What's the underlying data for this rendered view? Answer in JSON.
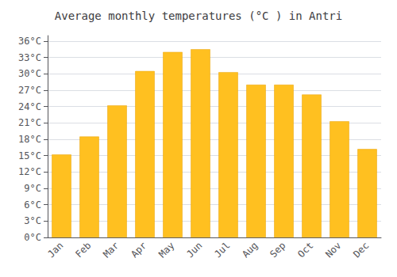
{
  "chart_data": {
    "type": "bar",
    "title": "Average monthly temperatures (°C ) in Antri",
    "categories": [
      "Jan",
      "Feb",
      "Mar",
      "Apr",
      "May",
      "Jun",
      "Jul",
      "Aug",
      "Sep",
      "Oct",
      "Nov",
      "Dec"
    ],
    "values": [
      15.2,
      18.5,
      24.2,
      30.5,
      34.0,
      34.5,
      30.3,
      28.0,
      28.0,
      26.2,
      21.3,
      16.2
    ],
    "color": "#FFC020",
    "ylim": [
      0,
      37
    ],
    "yticks": [
      {
        "value": 0,
        "label": "0°C"
      },
      {
        "value": 3,
        "label": "3°C"
      },
      {
        "value": 6,
        "label": "6°C"
      },
      {
        "value": 9,
        "label": "9°C"
      },
      {
        "value": 12,
        "label": "12°C"
      },
      {
        "value": 15,
        "label": "15°C"
      },
      {
        "value": 18,
        "label": "18°C"
      },
      {
        "value": 21,
        "label": "21°C"
      },
      {
        "value": 24,
        "label": "24°C"
      },
      {
        "value": 27,
        "label": "27°C"
      },
      {
        "value": 30,
        "label": "30°C"
      },
      {
        "value": 33,
        "label": "33°C"
      },
      {
        "value": 36,
        "label": "36°C"
      }
    ],
    "grid": true
  }
}
